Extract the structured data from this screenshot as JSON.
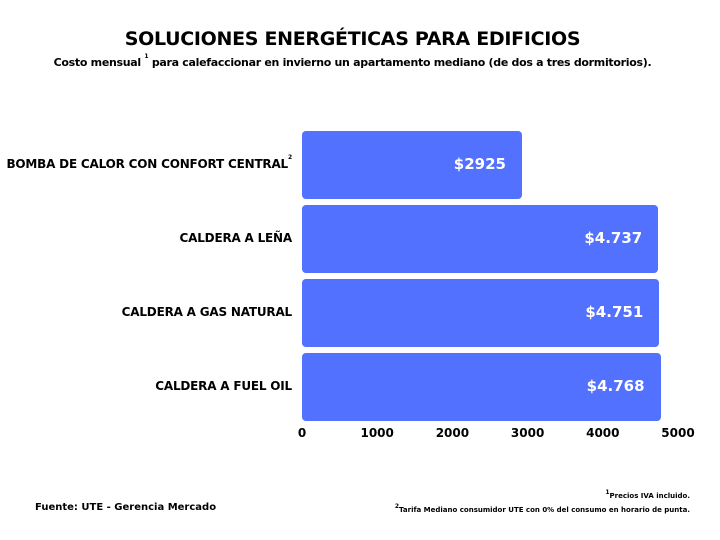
{
  "chart_data": {
    "type": "bar",
    "orientation": "horizontal",
    "title": "SOLUCIONES ENERGÉTICAS PARA EDIFICIOS",
    "subtitle_pre": "Costo mensual",
    "subtitle_sup": "1",
    "subtitle_post": "para calefaccionar en invierno un apartamento mediano (de dos a tres dormitorios).",
    "categories": [
      "BOMBA DE CALOR CON CONFORT CENTRAL",
      "CALDERA A LEÑA",
      "CALDERA A GAS NATURAL",
      "CALDERA A FUEL OIL"
    ],
    "category_sups": [
      "2",
      "",
      "",
      ""
    ],
    "values": [
      2925,
      4737,
      4751,
      4768
    ],
    "data_labels": [
      "$2925",
      "$4.737",
      "$4.751",
      "$4.768"
    ],
    "xlim": [
      0,
      5000
    ],
    "xticks": [
      "0",
      "1000",
      "2000",
      "3000",
      "4000",
      "5000"
    ],
    "xlabel": "",
    "ylabel": "",
    "grid": false,
    "bar_color": "#5271ff"
  },
  "source": "Fuente: UTE - Gerencia Mercado",
  "footnotes": [
    {
      "num": "1",
      "text": "Precios IVA incluido."
    },
    {
      "num": "2",
      "text": "Tarifa Mediano consumidor  UTE con 0% del consumo en horario de punta."
    }
  ]
}
